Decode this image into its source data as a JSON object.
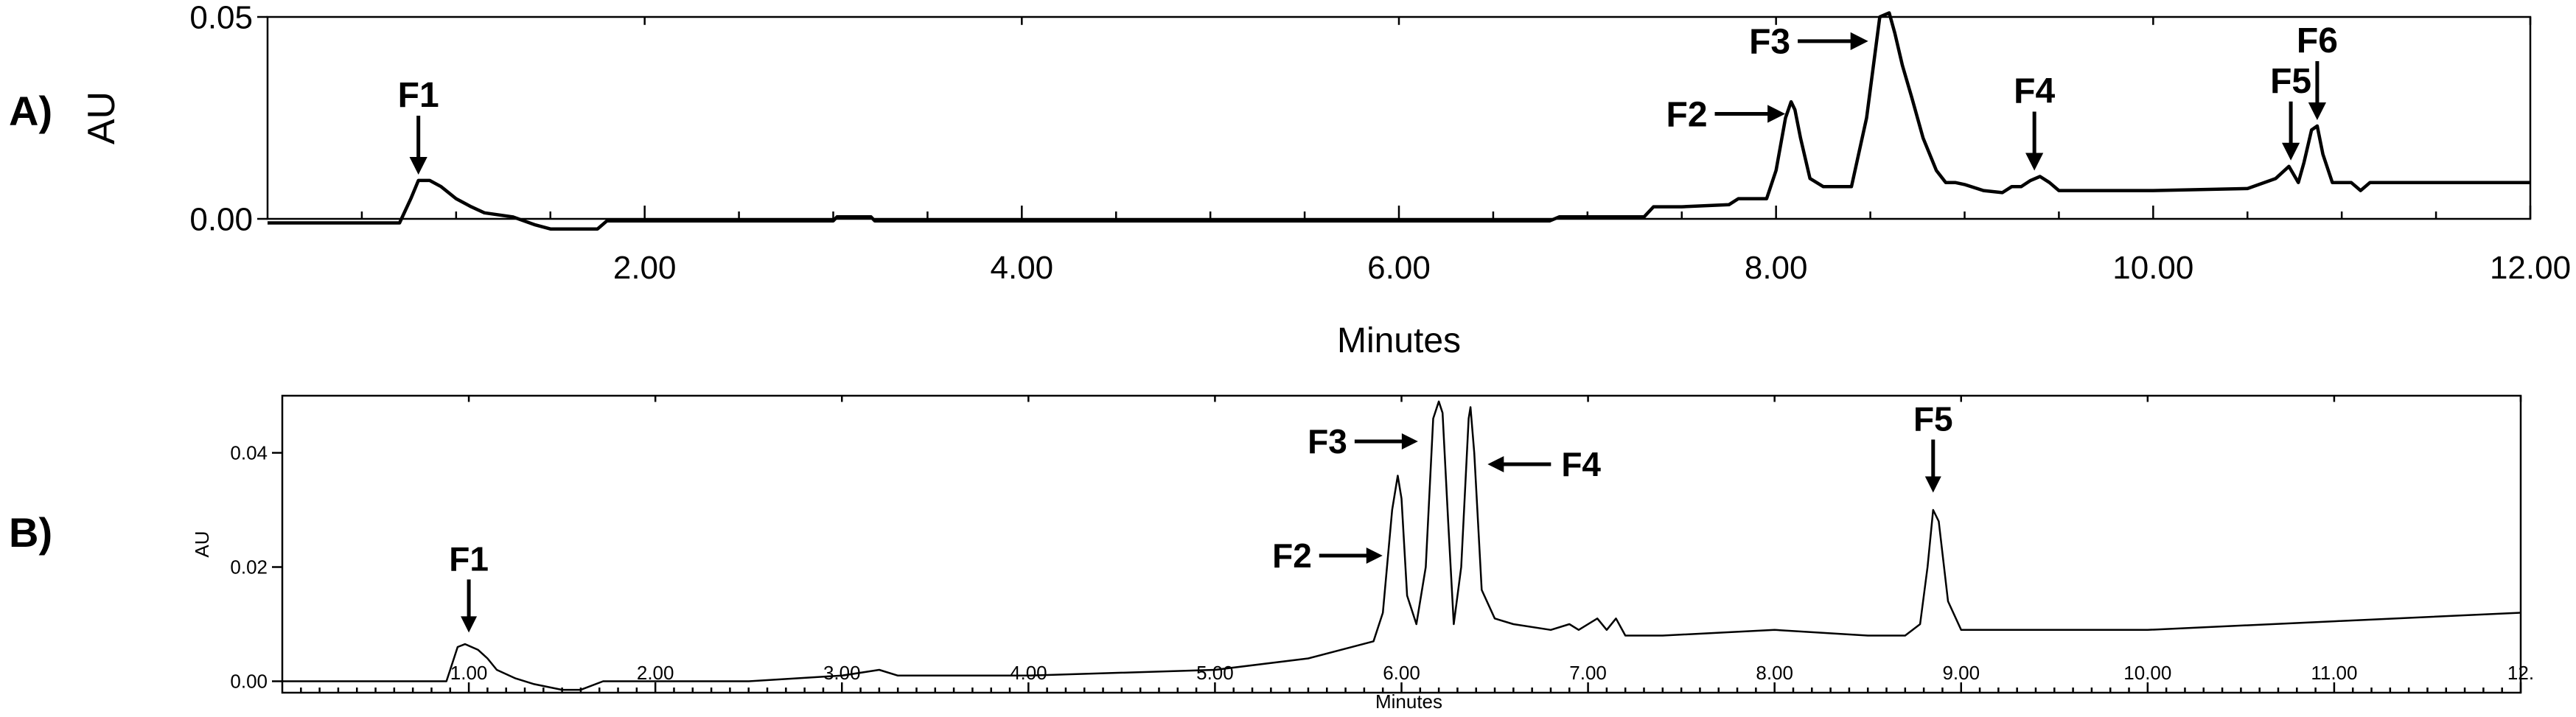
{
  "chart_data": [
    {
      "type": "line",
      "panel_label": "A)",
      "title": "",
      "xlabel": "Minutes",
      "ylabel": "AU",
      "xlim": [
        0,
        12
      ],
      "ylim": [
        0,
        0.05
      ],
      "x_tick_labels": [
        "2.00",
        "4.00",
        "6.00",
        "8.00",
        "10.00",
        "12.00"
      ],
      "y_tick_labels": [
        "0.00",
        "0.05"
      ],
      "grid": false,
      "series": [
        {
          "x": [
            0.0,
            0.7,
            0.72,
            0.76,
            0.8,
            0.86,
            0.92,
            1.0,
            1.08,
            1.15,
            1.3,
            1.42,
            1.5,
            1.75,
            1.8,
            2.5,
            3.0,
            3.02,
            3.2,
            3.22,
            4.0,
            6.0,
            6.8,
            6.85,
            7.3,
            7.35,
            7.5,
            7.75,
            7.8,
            7.95,
            8.0,
            8.05,
            8.08,
            8.1,
            8.13,
            8.18,
            8.25,
            8.33,
            8.4,
            8.48,
            8.55,
            8.6,
            8.63,
            8.67,
            8.72,
            8.78,
            8.85,
            8.9,
            8.95,
            9.0,
            9.1,
            9.2,
            9.25,
            9.3,
            9.35,
            9.4,
            9.45,
            9.5,
            9.6,
            10.0,
            10.5,
            10.65,
            10.72,
            10.77,
            10.8,
            10.84,
            10.87,
            10.9,
            10.95,
            11.05,
            11.1,
            11.15,
            11.5,
            12.0
          ],
          "y": [
            -0.001,
            -0.001,
            0.001,
            0.005,
            0.0095,
            0.0095,
            0.008,
            0.005,
            0.003,
            0.0015,
            0.0005,
            -0.0015,
            -0.0025,
            -0.0025,
            -0.0005,
            -0.0005,
            -0.0005,
            0.0005,
            0.0005,
            -0.0005,
            -0.0005,
            -0.0005,
            -0.0005,
            0.0005,
            0.0005,
            0.003,
            0.003,
            0.0035,
            0.005,
            0.005,
            0.012,
            0.025,
            0.029,
            0.027,
            0.02,
            0.01,
            0.008,
            0.008,
            0.008,
            0.025,
            0.05,
            0.051,
            0.046,
            0.038,
            0.03,
            0.02,
            0.012,
            0.009,
            0.009,
            0.0085,
            0.007,
            0.0065,
            0.008,
            0.008,
            0.0095,
            0.0105,
            0.009,
            0.007,
            0.007,
            0.007,
            0.0075,
            0.01,
            0.013,
            0.009,
            0.014,
            0.022,
            0.023,
            0.016,
            0.009,
            0.009,
            0.007,
            0.009,
            0.009,
            0.009
          ]
        }
      ],
      "annotations": [
        {
          "text": "F1",
          "x": 0.8,
          "y": 0.0095,
          "direction": "down"
        },
        {
          "text": "F2",
          "x": 8.08,
          "y": 0.026,
          "direction": "right"
        },
        {
          "text": "F3",
          "x": 8.52,
          "y": 0.044,
          "direction": "right"
        },
        {
          "text": "F4",
          "x": 9.37,
          "y": 0.0105,
          "direction": "down"
        },
        {
          "text": "F5",
          "x": 10.73,
          "y": 0.013,
          "direction": "down"
        },
        {
          "text": "F6",
          "x": 10.87,
          "y": 0.023,
          "direction": "down"
        }
      ]
    },
    {
      "type": "line",
      "panel_label": "B)",
      "title": "",
      "xlabel": "Minutes",
      "ylabel": "AU",
      "xlim": [
        0,
        12
      ],
      "ylim": [
        -0.002,
        0.05
      ],
      "x_tick_labels": [
        "1.00",
        "2.00",
        "3.00",
        "4.00",
        "5.00",
        "6.00",
        "7.00",
        "8.00",
        "9.00",
        "10.00",
        "11.00",
        "12."
      ],
      "y_tick_labels": [
        "0.00",
        "0.02",
        "0.04"
      ],
      "grid": false,
      "series": [
        {
          "x": [
            0.0,
            0.88,
            0.9,
            0.94,
            0.98,
            1.05,
            1.1,
            1.15,
            1.25,
            1.35,
            1.5,
            1.6,
            1.72,
            1.8,
            2.5,
            3.0,
            3.2,
            3.3,
            4.0,
            5.0,
            5.5,
            5.85,
            5.9,
            5.95,
            5.98,
            6.0,
            6.03,
            6.08,
            6.13,
            6.17,
            6.2,
            6.22,
            6.25,
            6.28,
            6.32,
            6.36,
            6.37,
            6.39,
            6.43,
            6.5,
            6.6,
            6.8,
            6.9,
            6.95,
            7.05,
            7.1,
            7.15,
            7.2,
            7.4,
            8.0,
            8.5,
            8.7,
            8.78,
            8.82,
            8.85,
            8.88,
            8.93,
            9.0,
            9.5,
            10.0,
            11.0,
            12.0
          ],
          "y": [
            0.0,
            0.0,
            0.002,
            0.006,
            0.0065,
            0.0055,
            0.004,
            0.002,
            0.0005,
            -0.0005,
            -0.0015,
            -0.0015,
            0.0,
            0.0,
            0.0,
            0.001,
            0.002,
            0.001,
            0.001,
            0.002,
            0.004,
            0.007,
            0.012,
            0.03,
            0.036,
            0.032,
            0.015,
            0.01,
            0.02,
            0.046,
            0.049,
            0.047,
            0.028,
            0.01,
            0.02,
            0.046,
            0.048,
            0.04,
            0.016,
            0.011,
            0.01,
            0.009,
            0.01,
            0.009,
            0.011,
            0.009,
            0.011,
            0.008,
            0.008,
            0.009,
            0.008,
            0.008,
            0.01,
            0.02,
            0.03,
            0.028,
            0.014,
            0.009,
            0.009,
            0.009,
            0.0105,
            0.012
          ]
        }
      ],
      "annotations": [
        {
          "text": "F1",
          "x": 1.0,
          "y": 0.0075,
          "direction": "down"
        },
        {
          "text": "F2",
          "x": 5.93,
          "y": 0.022,
          "direction": "right"
        },
        {
          "text": "F3",
          "x": 6.12,
          "y": 0.042,
          "direction": "right"
        },
        {
          "text": "F4",
          "x": 6.43,
          "y": 0.038,
          "direction": "left"
        },
        {
          "text": "F5",
          "x": 8.85,
          "y": 0.032,
          "direction": "down"
        }
      ]
    }
  ]
}
